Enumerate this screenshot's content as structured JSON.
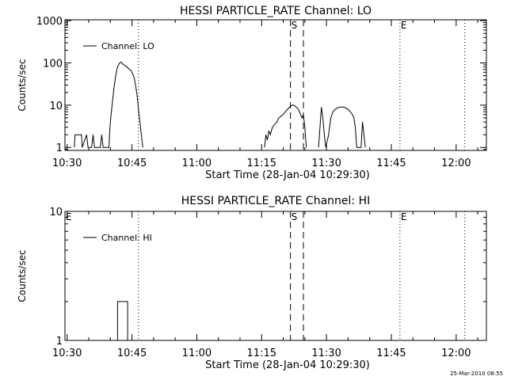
{
  "footer": {
    "timestamp": "25-Mar-2010 08:55"
  },
  "chart_data": [
    {
      "type": "line",
      "title": "HESSI PARTICLE_RATE Channel: LO",
      "xlabel": "Start Time (28-Jan-04 10:29:30)",
      "ylabel": "Counts/sec",
      "yscale": "log",
      "xlim": [
        "10:29:30",
        "12:07:00"
      ],
      "ylim": [
        0.85,
        1050
      ],
      "x_ticks": [
        "10:30",
        "10:45",
        "11:00",
        "11:15",
        "11:30",
        "11:45",
        "12:00"
      ],
      "y_ticks": [
        "1",
        "10",
        "100",
        "1000"
      ],
      "legend": {
        "position": "top-left",
        "label": "Channel: LO"
      },
      "markers": [
        {
          "label": "",
          "time": "10:46:30",
          "style": "dotted"
        },
        {
          "label": "S",
          "time": "11:21:40",
          "style": "dashed"
        },
        {
          "label": "",
          "time": "11:24:40",
          "style": "dashed"
        },
        {
          "label": "E",
          "time": "11:47:00",
          "style": "dotted"
        },
        {
          "label": "",
          "time": "12:02:00",
          "style": "dotted"
        },
        {
          "label": "",
          "time": "10:29:30",
          "style": "corner"
        }
      ],
      "series": [
        {
          "name": "Channel: LO",
          "segments": [
            [
              [
                "10:31:40",
                1
              ],
              [
                "10:31:50",
                2
              ],
              [
                "10:33:20",
                2
              ],
              [
                "10:33:30",
                1
              ],
              [
                "10:34:30",
                2
              ],
              [
                "10:34:50",
                1
              ],
              [
                "10:35:40",
                1
              ],
              [
                "10:36:00",
                2
              ],
              [
                "10:36:20",
                1
              ],
              [
                "10:37:40",
                1
              ],
              [
                "10:38:00",
                2
              ],
              [
                "10:38:20",
                1
              ],
              [
                "10:39:40",
                1
              ],
              [
                "10:39:55",
                3
              ],
              [
                "10:40:10",
                6
              ],
              [
                "10:40:30",
                12
              ],
              [
                "10:40:50",
                25
              ],
              [
                "10:41:10",
                45
              ],
              [
                "10:41:30",
                70
              ],
              [
                "10:41:50",
                88
              ],
              [
                "10:42:10",
                100
              ],
              [
                "10:42:30",
                105
              ],
              [
                "10:42:50",
                95
              ],
              [
                "10:43:10",
                90
              ],
              [
                "10:43:30",
                85
              ],
              [
                "10:43:50",
                80
              ],
              [
                "10:44:10",
                75
              ],
              [
                "10:44:30",
                70
              ],
              [
                "10:44:50",
                65
              ],
              [
                "10:45:10",
                55
              ],
              [
                "10:45:30",
                45
              ],
              [
                "10:45:50",
                30
              ],
              [
                "10:46:10",
                18
              ],
              [
                "10:46:30",
                8
              ],
              [
                "10:46:50",
                4
              ],
              [
                "10:47:10",
                2
              ],
              [
                "10:47:30",
                1
              ]
            ],
            [
              [
                "11:15:40",
                1
              ],
              [
                "11:16:00",
                2
              ],
              [
                "11:16:20",
                1.5
              ],
              [
                "11:16:40",
                2.5
              ],
              [
                "11:17:00",
                2
              ],
              [
                "11:17:30",
                3
              ],
              [
                "11:18:00",
                3.5
              ],
              [
                "11:18:30",
                4
              ],
              [
                "11:19:00",
                5
              ],
              [
                "11:19:30",
                5.5
              ],
              [
                "11:20:00",
                6
              ],
              [
                "11:20:30",
                7
              ],
              [
                "11:21:00",
                8
              ],
              [
                "11:21:30",
                9
              ],
              [
                "11:22:00",
                10
              ],
              [
                "11:22:30",
                10
              ],
              [
                "11:23:00",
                9
              ],
              [
                "11:23:30",
                8
              ],
              [
                "11:24:00",
                6
              ],
              [
                "11:24:20",
                5
              ],
              [
                "11:24:40",
                6
              ],
              [
                "11:25:00",
                3
              ],
              [
                "11:25:20",
                1
              ]
            ],
            [
              [
                "11:28:10",
                1
              ],
              [
                "11:28:30",
                3
              ],
              [
                "11:28:50",
                9
              ],
              [
                "11:29:10",
                5
              ],
              [
                "11:29:30",
                2
              ],
              [
                "11:29:50",
                1
              ],
              [
                "11:30:30",
                2
              ],
              [
                "11:31:00",
                5
              ],
              [
                "11:31:30",
                7
              ],
              [
                "11:32:00",
                8
              ],
              [
                "11:33:00",
                9
              ],
              [
                "11:34:00",
                9
              ],
              [
                "11:35:00",
                8
              ],
              [
                "11:35:30",
                7
              ],
              [
                "11:36:00",
                6
              ],
              [
                "11:36:20",
                5
              ],
              [
                "11:36:40",
                3
              ],
              [
                "11:37:00",
                1
              ],
              [
                "11:38:00",
                1
              ],
              [
                "11:38:20",
                4
              ],
              [
                "11:38:40",
                2
              ],
              [
                "11:39:00",
                1
              ]
            ]
          ]
        }
      ]
    },
    {
      "type": "line",
      "title": "HESSI PARTICLE_RATE Channel: HI",
      "xlabel": "Start Time (28-Jan-04 10:29:30)",
      "ylabel": "Counts/sec",
      "yscale": "log",
      "xlim": [
        "10:29:30",
        "12:07:00"
      ],
      "ylim": [
        1,
        10
      ],
      "x_ticks": [
        "10:30",
        "10:45",
        "11:00",
        "11:15",
        "11:30",
        "11:45",
        "12:00"
      ],
      "y_ticks": [
        "1",
        "10"
      ],
      "legend": {
        "position": "top-left",
        "label": "Channel: HI"
      },
      "markers": [
        {
          "label": "E",
          "time": "10:29:30",
          "style": "corner"
        },
        {
          "label": "",
          "time": "10:46:30",
          "style": "dotted"
        },
        {
          "label": "S",
          "time": "11:21:40",
          "style": "dashed"
        },
        {
          "label": "",
          "time": "11:24:40",
          "style": "dashed"
        },
        {
          "label": "E",
          "time": "11:47:00",
          "style": "dotted"
        },
        {
          "label": "",
          "time": "12:02:00",
          "style": "dotted"
        }
      ],
      "series": [
        {
          "name": "Channel: HI",
          "segments": [
            [
              [
                "10:41:40",
                1
              ],
              [
                "10:41:40",
                2
              ],
              [
                "10:44:00",
                2
              ],
              [
                "10:44:00",
                1
              ]
            ]
          ]
        }
      ]
    }
  ]
}
